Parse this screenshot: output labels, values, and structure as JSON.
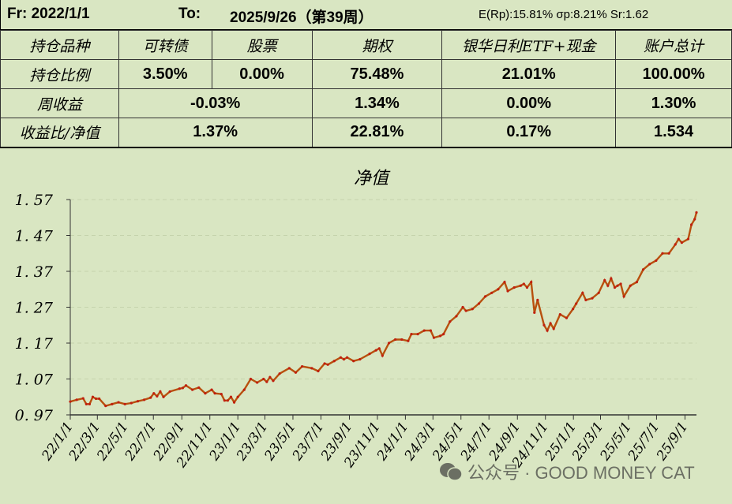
{
  "header": {
    "from": "Fr: 2022/1/1",
    "to": "To:",
    "to_date": "2025/9/26（第39周）",
    "stats": "E(Rp):15.81%  σp:8.21%  Sr:1.62"
  },
  "table": {
    "columns": [
      "持仓品种",
      "可转债",
      "股票",
      "期权",
      "银华日利ETF+现金",
      "账户总计"
    ],
    "position_ratio": {
      "label": "持仓比例",
      "values": [
        "3.50%",
        "0.00%",
        "75.48%",
        "21.01%",
        "100.00%"
      ]
    },
    "weekly_return": {
      "label": "周收益",
      "values": [
        "-0.03%",
        "1.34%",
        "0.00%",
        "1.30%"
      ]
    },
    "return_nav": {
      "label": "收益比/净值",
      "values": [
        "1.37%",
        "22.81%",
        "0.17%",
        "1.534"
      ]
    }
  },
  "watermark": "公众号 · GOOD MONEY CAT",
  "chart_data": {
    "type": "line",
    "title": "净值",
    "color": "#c0200f",
    "ylim": [
      0.97,
      1.57
    ],
    "yticks": [
      "0.97",
      "1.07",
      "1.17",
      "1.27",
      "1.37",
      "1.47",
      "1.57"
    ],
    "xlim": [
      "2022-01-01",
      "2025-09-26"
    ],
    "xticks": [
      "22/1/1",
      "22/3/1",
      "22/5/1",
      "22/7/1",
      "22/9/1",
      "22/11/1",
      "23/1/1",
      "23/3/1",
      "23/5/1",
      "23/7/1",
      "23/9/1",
      "23/11/1",
      "24/1/1",
      "24/3/1",
      "24/5/1",
      "24/7/1",
      "24/9/1",
      "24/11/1",
      "25/1/1",
      "25/3/1",
      "25/5/1",
      "25/7/1",
      "25/9/1"
    ],
    "grid": true,
    "x": [
      "2022-01-01",
      "2022-01-15",
      "2022-01-29",
      "2022-02-05",
      "2022-02-12",
      "2022-02-19",
      "2022-02-26",
      "2022-03-05",
      "2022-03-19",
      "2022-04-02",
      "2022-04-16",
      "2022-04-30",
      "2022-05-14",
      "2022-05-28",
      "2022-06-11",
      "2022-06-25",
      "2022-07-02",
      "2022-07-09",
      "2022-07-16",
      "2022-07-23",
      "2022-08-06",
      "2022-08-27",
      "2022-09-03",
      "2022-09-10",
      "2022-09-24",
      "2022-10-08",
      "2022-10-22",
      "2022-11-05",
      "2022-11-12",
      "2022-11-26",
      "2022-12-03",
      "2022-12-10",
      "2022-12-17",
      "2022-12-24",
      "2023-01-01",
      "2023-01-15",
      "2023-01-29",
      "2023-02-12",
      "2023-02-26",
      "2023-03-05",
      "2023-03-12",
      "2023-03-19",
      "2023-04-02",
      "2023-04-23",
      "2023-05-07",
      "2023-05-21",
      "2023-06-11",
      "2023-06-25",
      "2023-07-09",
      "2023-07-16",
      "2023-07-30",
      "2023-08-13",
      "2023-08-20",
      "2023-08-27",
      "2023-09-10",
      "2023-09-24",
      "2023-10-15",
      "2023-10-29",
      "2023-11-05",
      "2023-11-12",
      "2023-11-26",
      "2023-12-10",
      "2023-12-24",
      "2024-01-07",
      "2024-01-14",
      "2024-01-28",
      "2024-02-11",
      "2024-02-25",
      "2024-03-03",
      "2024-03-17",
      "2024-03-24",
      "2024-04-07",
      "2024-04-21",
      "2024-05-05",
      "2024-05-12",
      "2024-05-26",
      "2024-06-09",
      "2024-06-23",
      "2024-07-07",
      "2024-07-21",
      "2024-08-04",
      "2024-08-11",
      "2024-08-25",
      "2024-09-08",
      "2024-09-15",
      "2024-09-22",
      "2024-10-01",
      "2024-10-08",
      "2024-10-15",
      "2024-10-29",
      "2024-11-05",
      "2024-11-12",
      "2024-11-19",
      "2024-12-03",
      "2024-12-17",
      "2024-12-31",
      "2025-01-07",
      "2025-01-21",
      "2025-01-28",
      "2025-02-11",
      "2025-02-25",
      "2025-03-10",
      "2025-03-17",
      "2025-03-24",
      "2025-04-01",
      "2025-04-07",
      "2025-04-14",
      "2025-04-21",
      "2025-05-05",
      "2025-05-19",
      "2025-06-02",
      "2025-06-16",
      "2025-06-30",
      "2025-07-14",
      "2025-07-28",
      "2025-08-11",
      "2025-08-18",
      "2025-08-25",
      "2025-09-08",
      "2025-09-15",
      "2025-09-22",
      "2025-09-26"
    ],
    "values": [
      1.007,
      1.012,
      1.016,
      1.0,
      1.0,
      1.02,
      1.015,
      1.015,
      0.995,
      1.0,
      1.005,
      1.0,
      1.003,
      1.008,
      1.012,
      1.018,
      1.03,
      1.022,
      1.035,
      1.02,
      1.035,
      1.043,
      1.045,
      1.052,
      1.04,
      1.046,
      1.03,
      1.04,
      1.03,
      1.028,
      1.01,
      1.01,
      1.02,
      1.005,
      1.02,
      1.04,
      1.07,
      1.06,
      1.07,
      1.062,
      1.075,
      1.065,
      1.085,
      1.1,
      1.088,
      1.105,
      1.1,
      1.092,
      1.113,
      1.11,
      1.12,
      1.13,
      1.125,
      1.13,
      1.12,
      1.125,
      1.14,
      1.15,
      1.155,
      1.135,
      1.17,
      1.18,
      1.18,
      1.176,
      1.195,
      1.195,
      1.205,
      1.205,
      1.185,
      1.19,
      1.195,
      1.23,
      1.245,
      1.27,
      1.26,
      1.265,
      1.28,
      1.3,
      1.31,
      1.32,
      1.34,
      1.315,
      1.325,
      1.33,
      1.335,
      1.325,
      1.34,
      1.255,
      1.29,
      1.22,
      1.205,
      1.225,
      1.21,
      1.25,
      1.24,
      1.265,
      1.28,
      1.31,
      1.29,
      1.295,
      1.31,
      1.345,
      1.33,
      1.35,
      1.325,
      1.33,
      1.335,
      1.3,
      1.33,
      1.34,
      1.375,
      1.39,
      1.4,
      1.42,
      1.42,
      1.445,
      1.46,
      1.45,
      1.46,
      1.5,
      1.515,
      1.534
    ]
  }
}
